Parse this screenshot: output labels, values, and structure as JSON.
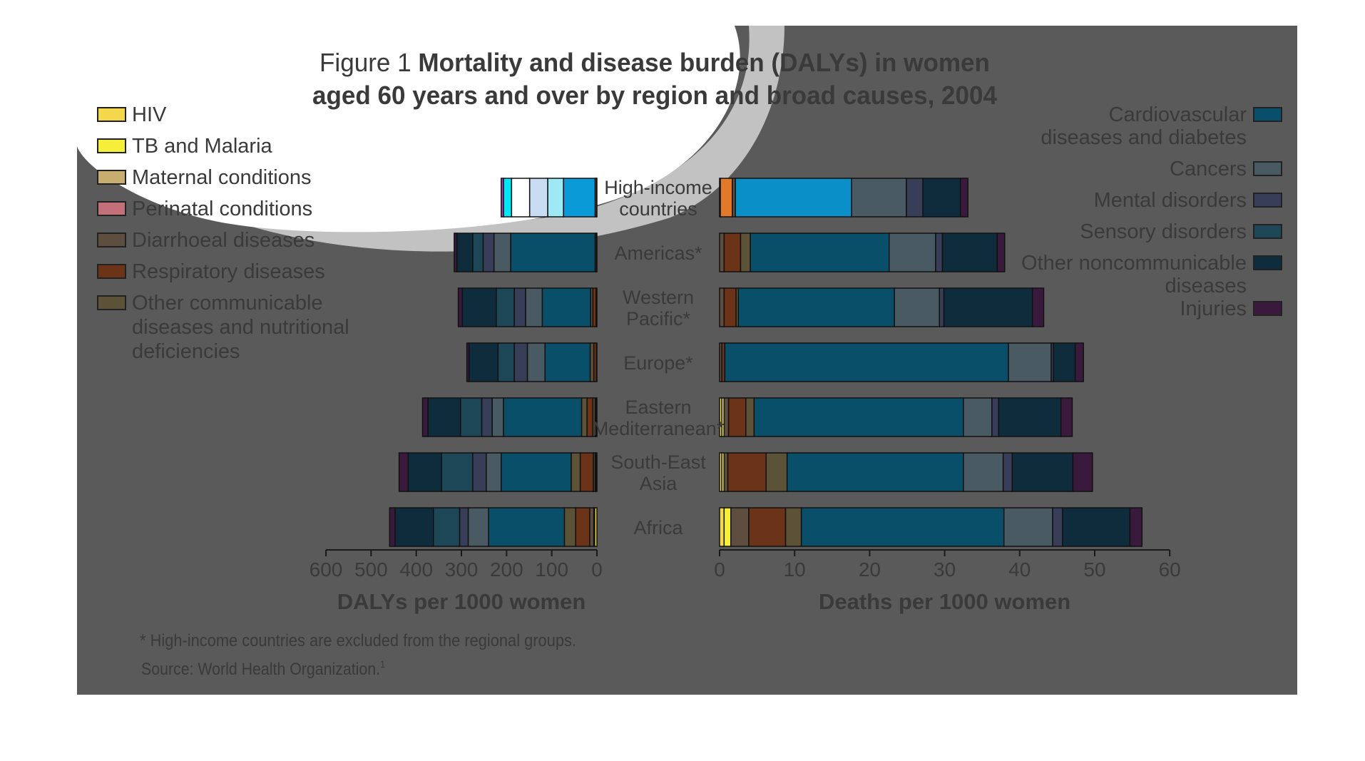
{
  "figure": {
    "title_prefix": "Figure 1",
    "title_line1": "Mortality and disease burden (DALYs) in women",
    "title_line2": "aged 60 years and over by region and broad causes, 2004",
    "footnote": "* High-income countries are excluded from the regional groups.",
    "source": "Source: World Health Organization.",
    "source_sup": "1"
  },
  "colors": {
    "background_panel": "#5a5a5a",
    "text": "#3a3a3a",
    "HIV": "#f2d84a",
    "TB and Malaria": "#f5ef3a",
    "Maternal conditions": "#c8ad70",
    "Perinatal conditions": "#c47079",
    "Diarrhoeal diseases": "#5e4e40",
    "Respiratory diseases": "#6b3318",
    "Other communicable": "#5c5238",
    "Cardiovascular diseases and diabetes": "#0a4f6a",
    "Cancers": "#4a5a62",
    "Mental disorders": "#383e58",
    "Sensory disorders": "#1d4656",
    "Other noncommunicable diseases": "#0f2c3c",
    "Injuries": "#3a1a3c",
    "hi_cardio": "#0a9ad8",
    "hi_cancers": "#9fe8f6",
    "hi_mental": "#c8dcf4",
    "hi_sensory": "#ffffff",
    "hi_othernc": "#00e6f4",
    "hi_injuries": "#b040d0",
    "hi_resp": "#e07a2a"
  },
  "legend_left": [
    {
      "key": "HIV",
      "lines": [
        "HIV"
      ]
    },
    {
      "key": "TB and Malaria",
      "lines": [
        "TB and Malaria"
      ]
    },
    {
      "key": "Maternal conditions",
      "lines": [
        "Maternal conditions"
      ]
    },
    {
      "key": "Perinatal conditions",
      "lines": [
        "Perinatal conditions"
      ]
    },
    {
      "key": "Diarrhoeal diseases",
      "lines": [
        "Diarrhoeal diseases"
      ]
    },
    {
      "key": "Respiratory diseases",
      "lines": [
        "Respiratory diseases"
      ]
    },
    {
      "key": "Other communicable",
      "lines": [
        "Other communicable",
        "diseases and nutritional",
        "deficiencies"
      ]
    }
  ],
  "legend_right": [
    {
      "key": "Cardiovascular diseases and diabetes",
      "lines": [
        "Cardiovascular",
        "diseases and diabetes"
      ]
    },
    {
      "key": "Cancers",
      "lines": [
        "Cancers"
      ]
    },
    {
      "key": "Mental disorders",
      "lines": [
        "Mental disorders"
      ]
    },
    {
      "key": "Sensory disorders",
      "lines": [
        "Sensory disorders"
      ]
    },
    {
      "key": "Other noncommunicable diseases",
      "lines": [
        "Other noncommunicable",
        "diseases"
      ]
    },
    {
      "key": "Injuries",
      "lines": [
        "Injuries"
      ]
    }
  ],
  "chart_data": [
    {
      "type": "bar",
      "orientation": "horizontal",
      "stacked": true,
      "direction": "right-to-left",
      "xlabel": "DALYs per 1000 women",
      "xlim": [
        0,
        600
      ],
      "xticks": [
        600,
        500,
        400,
        300,
        200,
        100,
        0
      ],
      "categories": [
        {
          "lines": [
            "High-income",
            "countries"
          ]
        },
        {
          "lines": [
            "Americas*"
          ]
        },
        {
          "lines": [
            "Western",
            "Pacific*"
          ]
        },
        {
          "lines": [
            "Europe*"
          ]
        },
        {
          "lines": [
            "Eastern",
            "Mediterranean*"
          ]
        },
        {
          "lines": [
            "South-East",
            "Asia"
          ]
        },
        {
          "lines": [
            "Africa"
          ]
        }
      ],
      "series_order": [
        "HIV",
        "TB and Malaria",
        "Maternal conditions",
        "Perinatal conditions",
        "Diarrhoeal diseases",
        "Respiratory diseases",
        "Other communicable",
        "Cardiovascular diseases and diabetes",
        "Cancers",
        "Mental disorders",
        "Sensory disorders",
        "Other noncommunicable diseases",
        "Injuries"
      ],
      "values": [
        [
          0,
          0,
          0,
          0,
          1,
          3,
          0,
          70,
          35,
          40,
          40,
          18,
          5
        ],
        [
          0,
          0,
          0,
          0,
          1,
          3,
          0,
          187,
          37,
          24,
          23,
          35,
          6
        ],
        [
          0,
          0,
          0,
          0,
          2,
          7,
          5,
          107,
          37,
          25,
          40,
          75,
          9
        ],
        [
          0,
          0,
          0,
          0,
          1,
          6,
          8,
          100,
          39,
          29,
          36,
          64,
          5
        ],
        [
          2,
          2,
          0,
          0,
          5,
          13,
          12,
          173,
          25,
          23,
          47,
          72,
          12
        ],
        [
          2,
          2,
          0,
          0,
          4,
          29,
          20,
          155,
          33,
          30,
          69,
          74,
          20
        ],
        [
          5,
          2,
          0,
          0,
          9,
          31,
          25,
          168,
          45,
          19,
          58,
          85,
          12
        ]
      ]
    },
    {
      "type": "bar",
      "orientation": "horizontal",
      "stacked": true,
      "xlabel": "Deaths per 1000 women",
      "xlim": [
        0,
        60
      ],
      "xticks": [
        0,
        10,
        20,
        30,
        40,
        50,
        60
      ],
      "categories_shared": true,
      "series_order": [
        "HIV",
        "TB and Malaria",
        "Maternal conditions",
        "Perinatal conditions",
        "Diarrhoeal diseases",
        "Respiratory diseases",
        "Other communicable",
        "Cardiovascular diseases and diabetes",
        "Cancers",
        "Mental disorders",
        "Sensory disorders",
        "Other noncommunicable diseases",
        "Injuries"
      ],
      "values": [
        [
          0,
          0,
          0,
          0,
          0.1,
          1.6,
          0.4,
          15.5,
          7.3,
          2.2,
          0,
          5.0,
          1.0
        ],
        [
          0,
          0,
          0,
          0,
          0.6,
          2.2,
          1.3,
          18.5,
          6.2,
          0.9,
          0,
          7.3,
          1.0
        ],
        [
          0,
          0,
          0,
          0,
          0.6,
          1.6,
          0.3,
          20.8,
          6.0,
          0.6,
          0,
          11.8,
          1.5
        ],
        [
          0,
          0,
          0,
          0,
          0.3,
          0.4,
          0,
          37.8,
          5.7,
          0.3,
          0,
          2.9,
          1.1
        ],
        [
          0.3,
          0.3,
          0,
          0,
          0.6,
          2.3,
          1.1,
          27.9,
          3.8,
          0.9,
          0,
          8.3,
          1.5
        ],
        [
          0.3,
          0.3,
          0,
          0,
          0.5,
          5.1,
          2.8,
          23.5,
          5.3,
          1.2,
          0,
          8.1,
          2.6
        ],
        [
          0.6,
          0.9,
          0,
          0,
          2.4,
          4.9,
          2.1,
          27.0,
          6.5,
          1.3,
          0,
          9.0,
          1.6
        ]
      ]
    }
  ]
}
